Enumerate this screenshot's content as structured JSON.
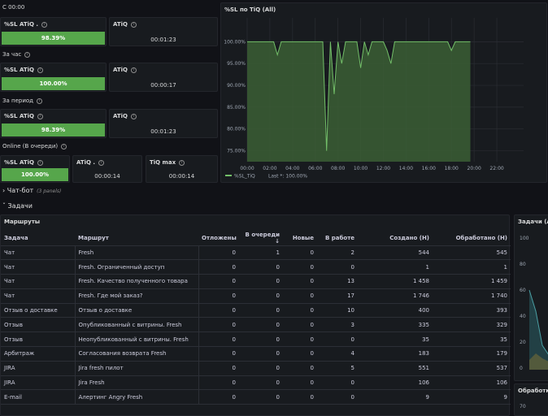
{
  "stats": {
    "s00": {
      "header": "С 00:00",
      "sl_title": "%SL ATiQ .",
      "sl_value": "98.39%",
      "atiq_title": "ATiQ",
      "atiq_value": "00:01:23"
    },
    "hour": {
      "header": "За час",
      "sl_title": "%SL ATiQ",
      "sl_value": "100.00%",
      "atiq_title": "ATiQ",
      "atiq_value": "00:00:17"
    },
    "period": {
      "header": "За период",
      "sl_title": "%SL ATiQ",
      "sl_value": "98.39%",
      "atiq_title": "ATiQ",
      "atiq_value": "00:01:23"
    },
    "online": {
      "header": "Online (В очереди)",
      "sl_title": "%SL ATiQ",
      "sl_value": "100.00%",
      "atiq_title": "ATiQ .",
      "atiq_value": "00:00:14",
      "max_title": "TiQ max",
      "max_value": "00:00:14"
    }
  },
  "graph": {
    "title": "%SL по TiQ (All)",
    "legend_series": "%SL_TiQ",
    "legend_last": "Last *: 100.00%"
  },
  "rows": {
    "chatbot": {
      "title": "Чат-бот",
      "count": "(3 panels)"
    },
    "tasks": {
      "title": "Задачи"
    }
  },
  "routes": {
    "title": "Маршруты",
    "columns": [
      "Задача",
      "Маршрут",
      "Отложены",
      "В очереди",
      "Новые",
      "В работе",
      "Создано (Н)",
      "Обработано (Н)"
    ],
    "sort_indicator": "↓",
    "rows": [
      [
        "Чат",
        "Fresh",
        "0",
        "1",
        "0",
        "2",
        "544",
        "545"
      ],
      [
        "Чат",
        "Fresh. Ограниченный доступ",
        "0",
        "0",
        "0",
        "0",
        "1",
        "1"
      ],
      [
        "Чат",
        "Fresh. Качество полученного товара",
        "0",
        "0",
        "0",
        "13",
        "1 458",
        "1 459"
      ],
      [
        "Чат",
        "Fresh. Где мой заказ?",
        "0",
        "0",
        "0",
        "17",
        "1 746",
        "1 740"
      ],
      [
        "Отзыв о доставке",
        "Отзыв о доставке",
        "0",
        "0",
        "0",
        "10",
        "400",
        "393"
      ],
      [
        "Отзыв",
        "Опубликованный с витрины. Fresh",
        "0",
        "0",
        "0",
        "3",
        "335",
        "329"
      ],
      [
        "Отзыв",
        "Неопубликованный с витрины. Fresh",
        "0",
        "0",
        "0",
        "0",
        "35",
        "35"
      ],
      [
        "Арбитраж",
        "Согласования возврата Fresh",
        "0",
        "0",
        "0",
        "4",
        "183",
        "179"
      ],
      [
        "JIRA",
        "Jira fresh пилот",
        "0",
        "0",
        "0",
        "5",
        "551",
        "537"
      ],
      [
        "JIRA",
        "Jira Fresh",
        "0",
        "0",
        "0",
        "0",
        "106",
        "106"
      ],
      [
        "E-mail",
        "Алертинг Angry Fresh",
        "0",
        "0",
        "0",
        "0",
        "9",
        "9"
      ]
    ]
  },
  "side_panels": {
    "tasks_all_title": "Задачи (All",
    "tasks_ticks": [
      "100",
      "80",
      "60",
      "40",
      "20",
      "0"
    ],
    "processed_title": "Обработка",
    "processed_tick": "70"
  },
  "colors": {
    "accent_green": "#56a64b",
    "panel_bg": "#181b1f",
    "page_bg": "#111217",
    "teal": "#2f6f73",
    "yellow": "#b08b2b"
  },
  "chart_data": {
    "type": "area",
    "title": "%SL по TiQ (All)",
    "series": [
      {
        "name": "%SL_TiQ",
        "last": 100.0
      }
    ],
    "x": [
      "00:00",
      "00:20",
      "00:40",
      "01:00",
      "01:20",
      "01:40",
      "02:00",
      "02:20",
      "02:40",
      "03:00",
      "03:20",
      "03:40",
      "04:00",
      "04:20",
      "04:40",
      "05:00",
      "05:20",
      "05:40",
      "06:00",
      "06:20",
      "06:40",
      "07:00",
      "07:20",
      "07:40",
      "08:00",
      "08:20",
      "08:40",
      "09:00",
      "09:20",
      "09:40",
      "10:00",
      "10:20",
      "10:40",
      "11:00",
      "11:20",
      "11:40",
      "12:00",
      "12:20",
      "12:40",
      "13:00",
      "13:20",
      "13:40",
      "14:00",
      "14:20",
      "14:40",
      "15:00",
      "15:20",
      "15:40",
      "16:00",
      "16:20",
      "16:40",
      "17:00",
      "17:20",
      "17:40",
      "18:00",
      "18:20",
      "18:40",
      "19:00",
      "19:20",
      "19:40"
    ],
    "values": [
      100,
      100,
      100,
      100,
      100,
      100,
      100,
      100,
      97,
      100,
      100,
      100,
      100,
      100,
      100,
      100,
      100,
      100,
      100,
      100,
      100,
      75,
      100,
      88,
      100,
      95,
      100,
      100,
      100,
      100,
      94,
      100,
      97,
      100,
      100,
      100,
      100,
      98,
      95,
      100,
      100,
      100,
      100,
      100,
      100,
      100,
      100,
      100,
      100,
      100,
      100,
      100,
      100,
      100,
      98,
      100,
      100,
      100,
      100,
      100
    ],
    "x_ticks": [
      "00:00",
      "02:00",
      "04:00",
      "06:00",
      "08:00",
      "10:00",
      "12:00",
      "14:00",
      "16:00",
      "18:00",
      "20:00",
      "22:00"
    ],
    "y_ticks": [
      "100.00%",
      "95.00%",
      "90.00%",
      "85.00%",
      "80.00%",
      "75.00%"
    ],
    "ylim": [
      72.5,
      101
    ],
    "xlim_hours": [
      0,
      23.5
    ],
    "legend_placement": "bottom-left",
    "grid": true
  }
}
